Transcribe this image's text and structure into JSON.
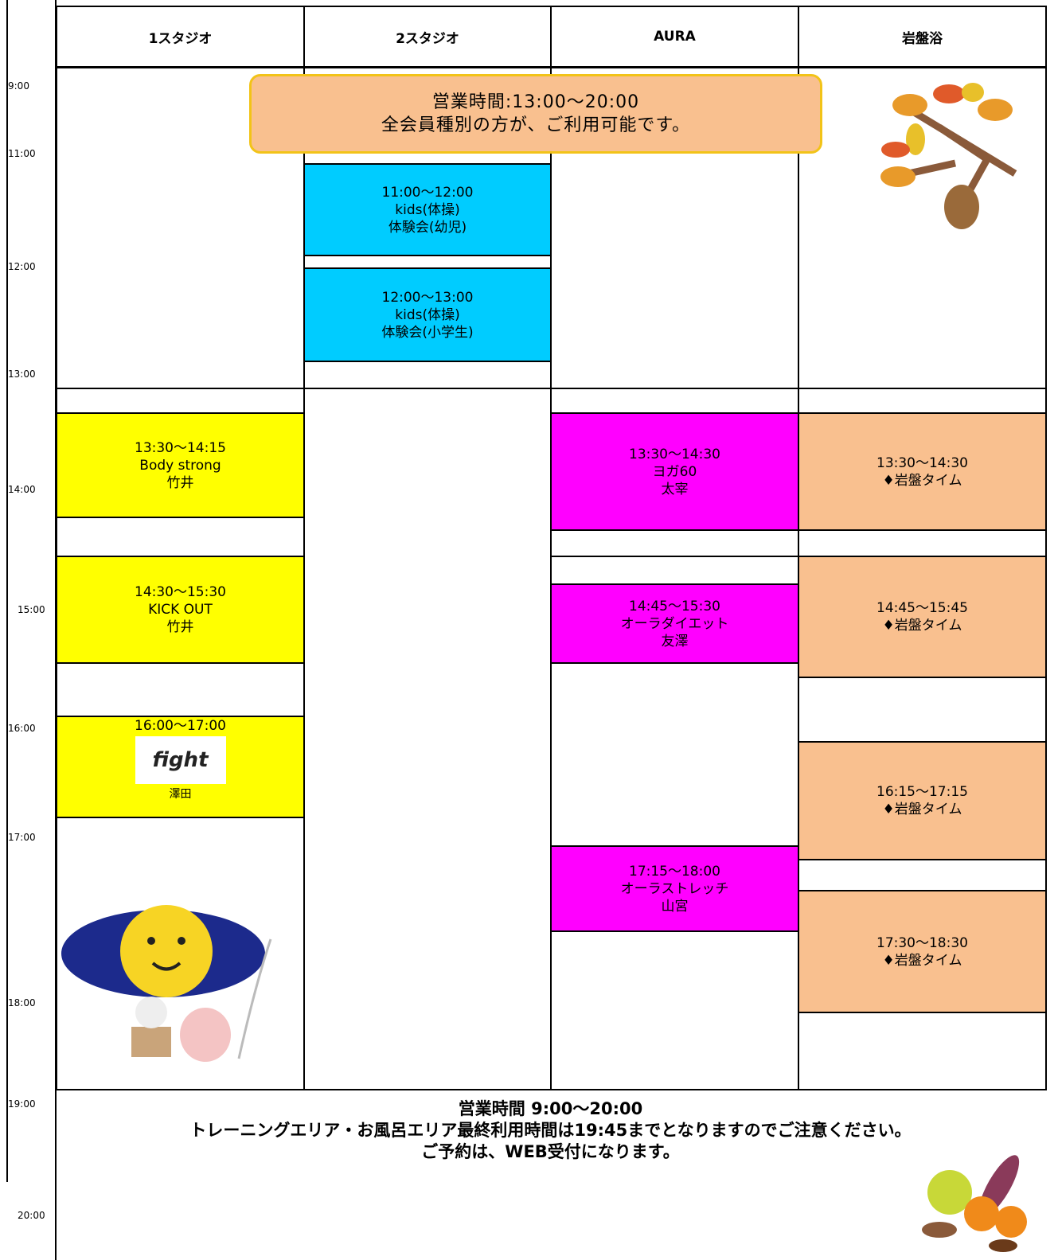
{
  "header": {
    "columns": [
      "1スタジオ",
      "2スタジオ",
      "AURA",
      "岩盤浴"
    ]
  },
  "time_labels": [
    "9:00",
    "11:00",
    "12:00",
    "13:00",
    "14:00",
    "15:00",
    "16:00",
    "17:00",
    "18:00",
    "19:00",
    "20:00"
  ],
  "notice": {
    "lines": [
      "営業時間:13:00〜20:00",
      "全会員種別の方が、ご利用可能です。"
    ]
  },
  "columns": [
    {
      "events": [
        {
          "lines": [
            "13:30〜14:15",
            "Body strong",
            "竹井"
          ]
        },
        {
          "lines": [
            "14:30〜15:30",
            "KICK OUT",
            "竹井"
          ]
        },
        {
          "lines": [
            "16:00〜17:00",
            "澤田"
          ],
          "logo": "fight"
        }
      ]
    },
    {
      "events": [
        {
          "lines": [
            "11:00〜12:00",
            "kids(体操)",
            "体験会(幼児)"
          ]
        },
        {
          "lines": [
            "12:00〜13:00",
            "kids(体操)",
            "体験会(小学生)"
          ]
        }
      ]
    },
    {
      "events": [
        {
          "lines": [
            "13:30〜14:30",
            "ヨガ60",
            "太宰"
          ]
        },
        {
          "lines": [
            "14:45〜15:30",
            "オーラダイエット",
            "友澤"
          ]
        },
        {
          "lines": [
            "17:15〜18:00",
            "オーラストレッチ",
            "山宮"
          ]
        }
      ]
    },
    {
      "events": [
        {
          "lines": [
            "13:30〜14:30",
            "♦岩盤タイム"
          ]
        },
        {
          "lines": [
            "14:45〜15:45",
            "♦岩盤タイム"
          ]
        },
        {
          "lines": [
            "16:15〜17:15",
            "♦岩盤タイム"
          ]
        },
        {
          "lines": [
            "17:30〜18:30",
            "♦岩盤タイム"
          ]
        }
      ]
    }
  ],
  "footer": {
    "lines": [
      "営業時間 9:00〜20:00",
      "トレーニングエリア・お風呂エリア最終利用時間は19:45までとなりますのでご注意ください。",
      "ご予約は、WEB受付になります。"
    ]
  }
}
